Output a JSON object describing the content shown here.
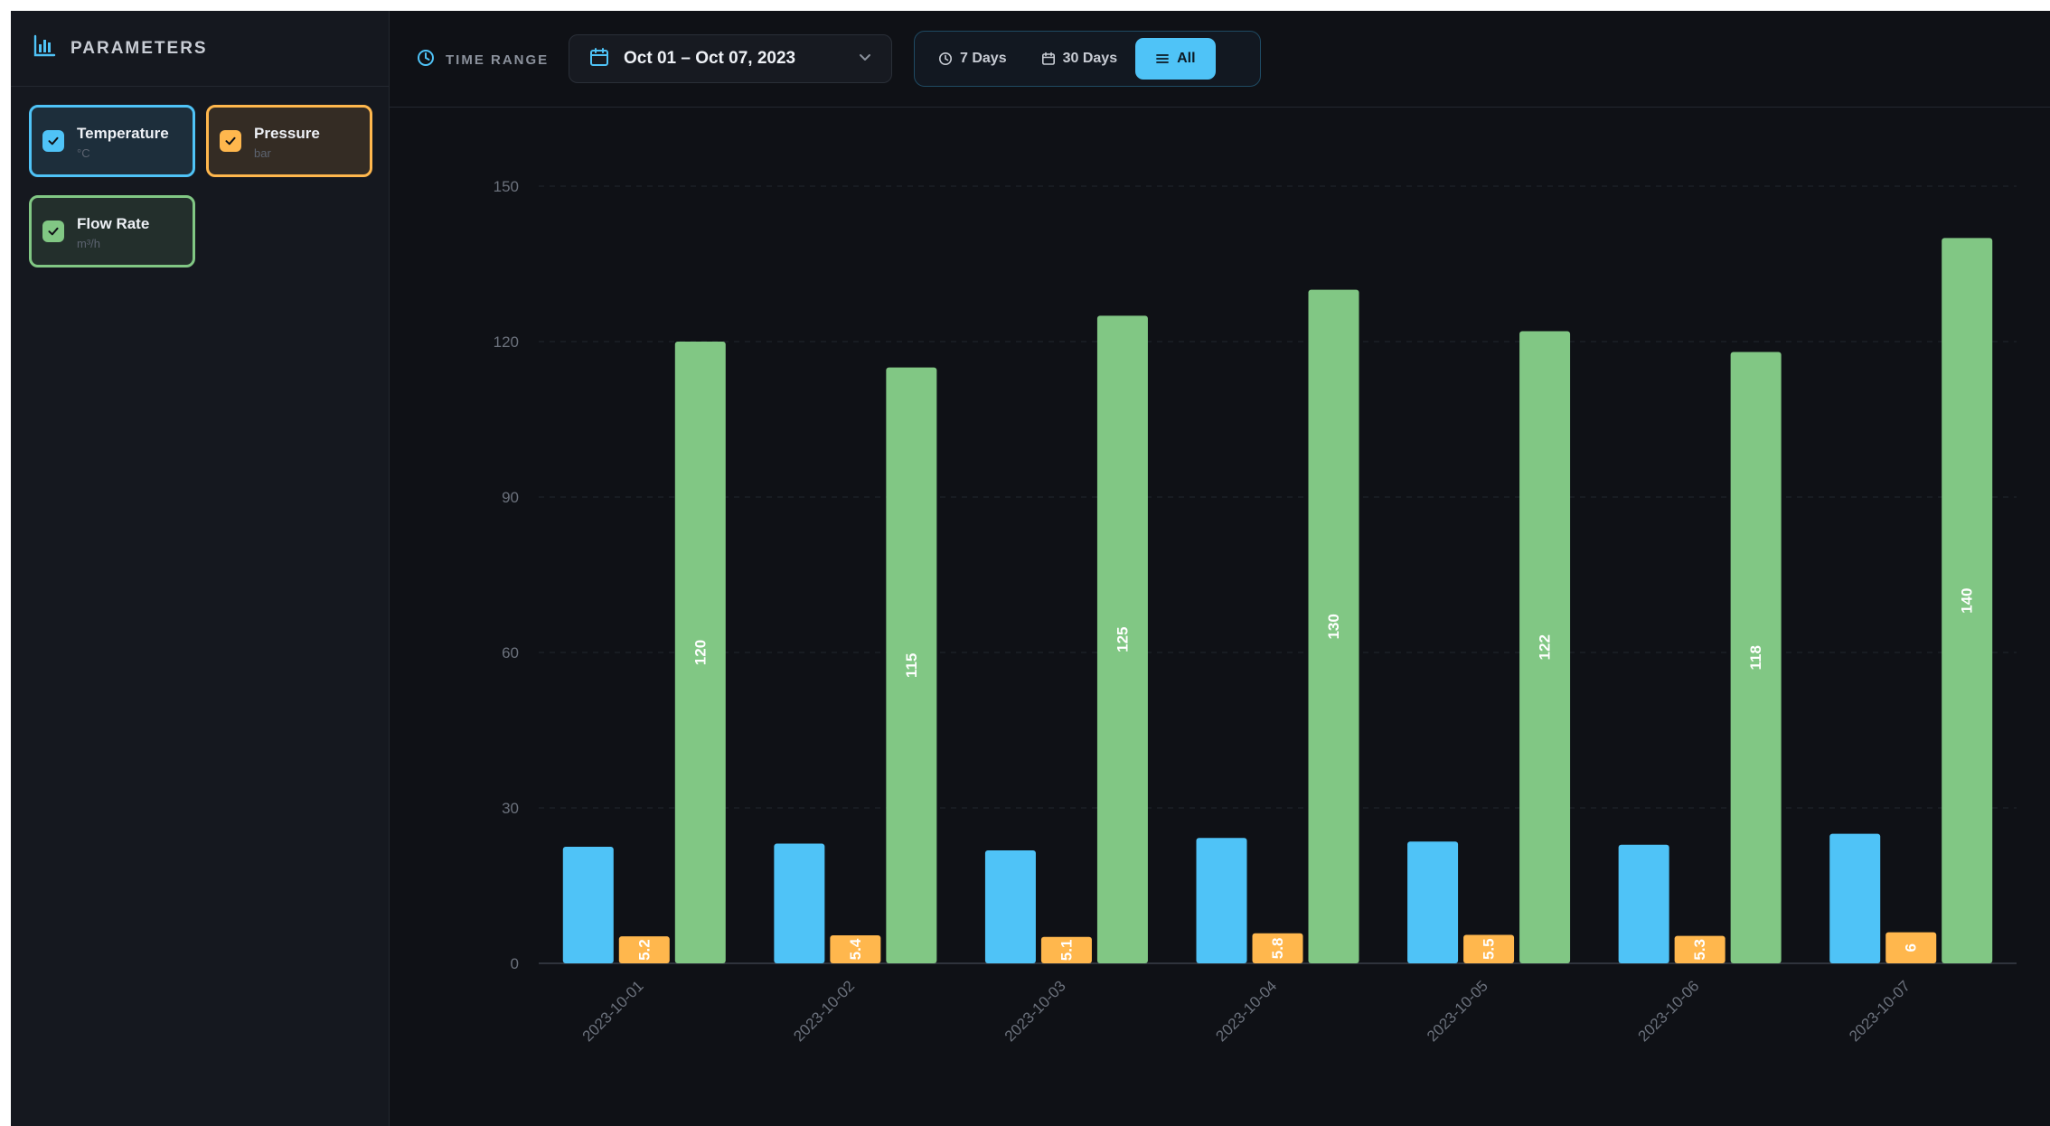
{
  "sidebar": {
    "title": "PARAMETERS",
    "params": [
      {
        "name": "Temperature",
        "unit": "°C",
        "color": "#4fc3f7",
        "checked": true
      },
      {
        "name": "Pressure",
        "unit": "bar",
        "color": "#ffb74d",
        "checked": true
      },
      {
        "name": "Flow Rate",
        "unit": "m³/h",
        "color": "#81c784",
        "checked": true
      }
    ]
  },
  "toolbar": {
    "time_range_label": "TIME RANGE",
    "date_range": "Oct 01 – Oct 07, 2023",
    "range_buttons": [
      {
        "label": "7 Days",
        "icon": "clock-icon",
        "active": false
      },
      {
        "label": "30 Days",
        "icon": "calendar-icon",
        "active": false
      },
      {
        "label": "All",
        "icon": "list-icon",
        "active": true
      }
    ]
  },
  "chart_data": {
    "type": "bar",
    "categories": [
      "2023-10-01",
      "2023-10-02",
      "2023-10-03",
      "2023-10-04",
      "2023-10-05",
      "2023-10-06",
      "2023-10-07"
    ],
    "series": [
      {
        "name": "Temperature",
        "color": "#4fc3f7",
        "values": [
          22.5,
          23.1,
          21.8,
          24.2,
          23.5,
          22.9,
          25.0
        ],
        "show_labels": false
      },
      {
        "name": "Pressure",
        "color": "#ffb74d",
        "values": [
          5.2,
          5.4,
          5.1,
          5.8,
          5.5,
          5.3,
          6
        ],
        "show_labels": true
      },
      {
        "name": "Flow Rate",
        "color": "#81c784",
        "values": [
          120,
          115,
          125,
          130,
          122,
          118,
          140
        ],
        "show_labels": true
      }
    ],
    "yticks": [
      0,
      30,
      60,
      90,
      120,
      150
    ],
    "ylim": [
      0,
      150
    ],
    "grid": true
  }
}
